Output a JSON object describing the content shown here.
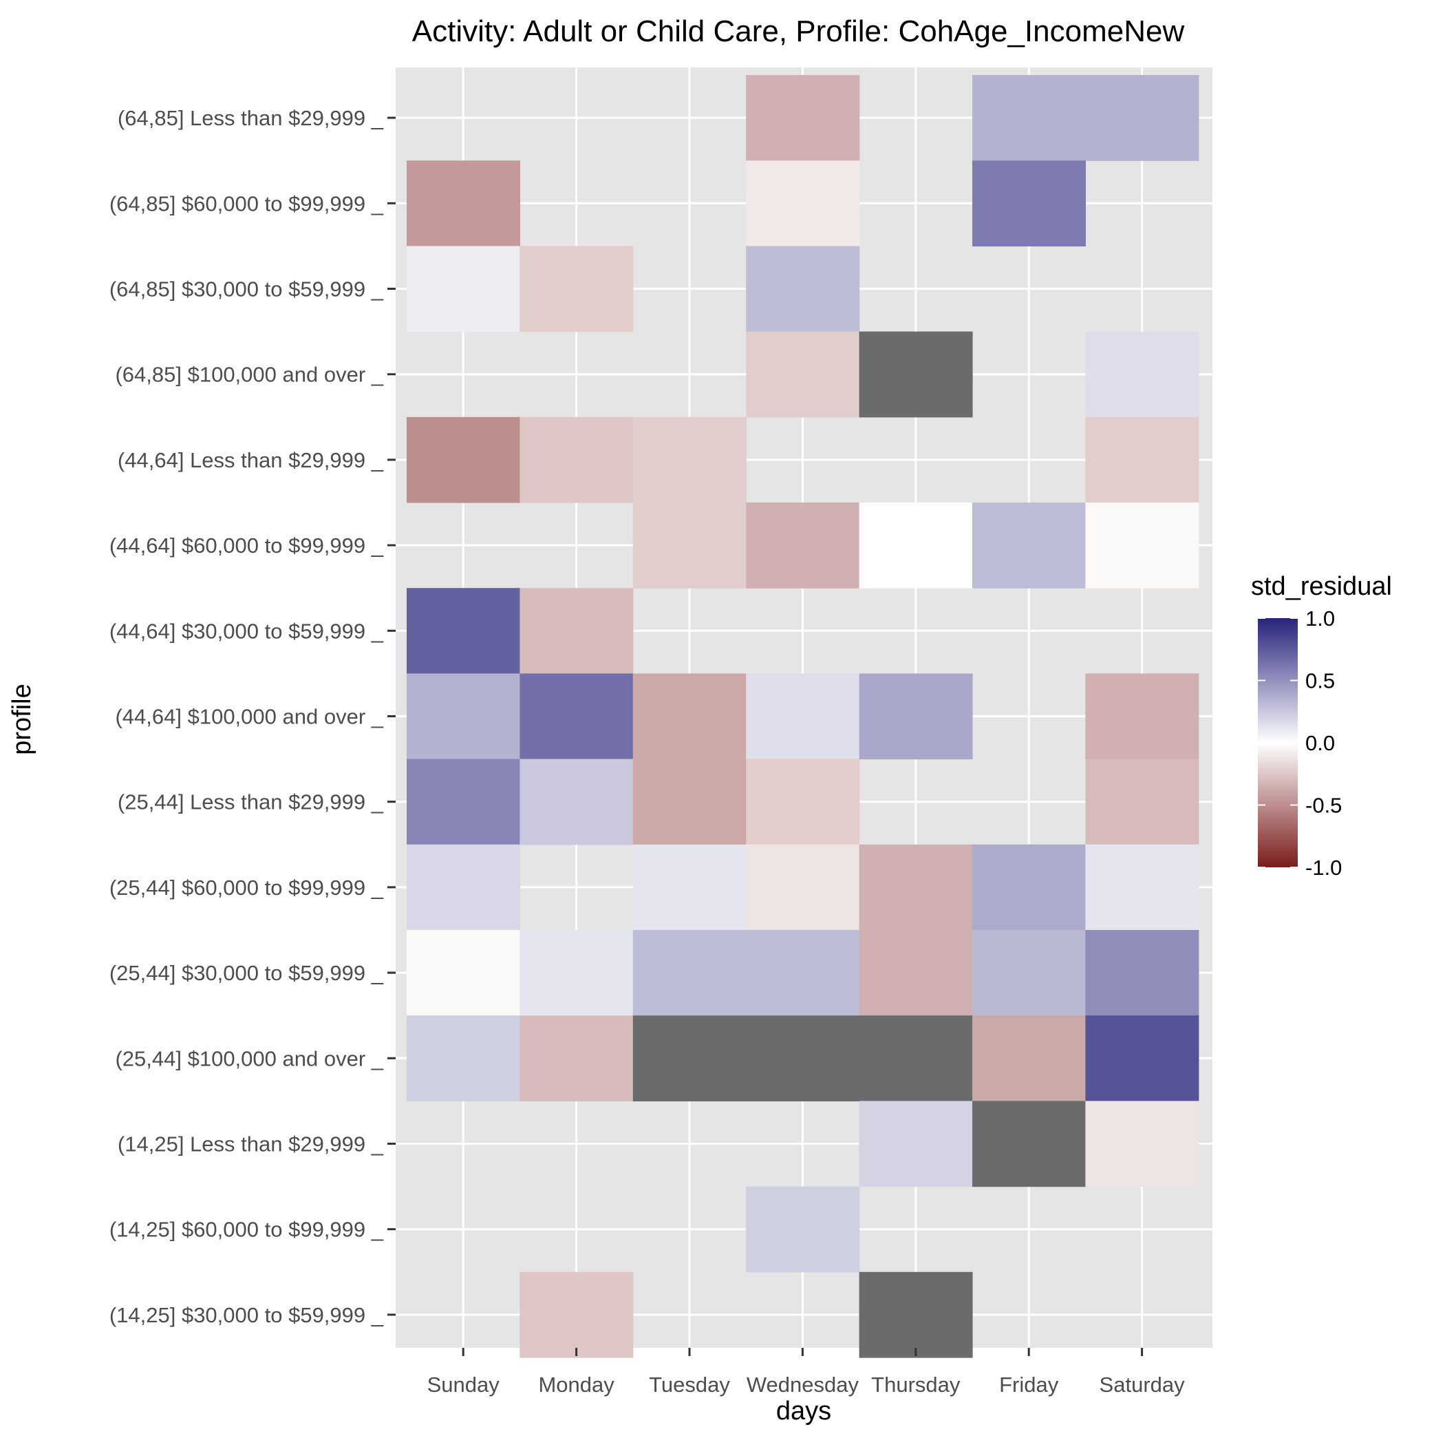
{
  "chart_data": {
    "type": "heatmap",
    "title": "Activity: Adult or Child Care, Profile: CohAge_IncomeNew",
    "xlabel": "days",
    "ylabel": "profile",
    "x_categories": [
      "Sunday",
      "Monday",
      "Tuesday",
      "Wednesday",
      "Thursday",
      "Friday",
      "Saturday"
    ],
    "y_categories": [
      "(64,85] Less than $29,999 _",
      "(64,85] $60,000 to $99,999 _",
      "(64,85] $30,000 to $59,999 _",
      "(64,85] $100,000 and over _",
      "(44,64] Less than $29,999 _",
      "(44,64] $60,000 to $99,999 _",
      "(44,64] $30,000 to $59,999 _",
      "(44,64] $100,000 and over _",
      "(25,44] Less than $29,999 _",
      "(25,44] $60,000 to $99,999 _",
      "(25,44] $30,000 to $59,999 _",
      "(25,44] $100,000 and over _",
      "(14,25] Less than $29,999 _",
      "(14,25] $60,000 to $99,999 _",
      "(14,25] $30,000 to $59,999 _"
    ],
    "values": [
      [
        null,
        null,
        null,
        -0.35,
        null,
        0.35,
        0.35
      ],
      [
        -0.45,
        null,
        null,
        -0.1,
        null,
        0.6,
        null
      ],
      [
        0.08,
        -0.22,
        null,
        0.3,
        null,
        null,
        null
      ],
      [
        null,
        null,
        null,
        -0.22,
        "NA",
        null,
        0.15
      ],
      [
        -0.5,
        -0.25,
        -0.22,
        null,
        null,
        null,
        -0.22
      ],
      [
        null,
        null,
        -0.22,
        -0.35,
        0.0,
        0.3,
        -0.03
      ],
      [
        0.72,
        -0.3,
        null,
        null,
        null,
        null,
        null
      ],
      [
        0.35,
        0.65,
        -0.38,
        0.15,
        0.4,
        null,
        -0.35
      ],
      [
        0.55,
        0.25,
        -0.38,
        -0.22,
        null,
        null,
        -0.3
      ],
      [
        0.18,
        null,
        0.12,
        -0.12,
        -0.35,
        0.38,
        0.12
      ],
      [
        -0.03,
        0.12,
        0.3,
        0.3,
        -0.35,
        0.32,
        0.52
      ],
      [
        0.22,
        -0.3,
        "NA",
        "NA",
        "NA",
        -0.38,
        0.78
      ],
      [
        null,
        null,
        null,
        null,
        0.2,
        "NA",
        -0.12
      ],
      [
        null,
        null,
        null,
        0.22,
        null,
        null,
        null
      ],
      [
        null,
        -0.25,
        null,
        null,
        "NA",
        null,
        null
      ]
    ],
    "legend": {
      "title": "std_residual",
      "range": [
        -1.0,
        1.0
      ],
      "ticks": [
        "1.0",
        "0.5",
        "0.0",
        "-0.5",
        "-1.0"
      ],
      "tick_values": [
        1.0,
        0.5,
        0.0,
        -0.5,
        -1.0
      ],
      "low_color": "#7a1c1c",
      "mid_color": "#ffffff",
      "high_color": "#27237a",
      "na_color": "#6b6b6b",
      "placement": "right"
    },
    "panel_background": "#e5e5e5",
    "grid": true
  }
}
